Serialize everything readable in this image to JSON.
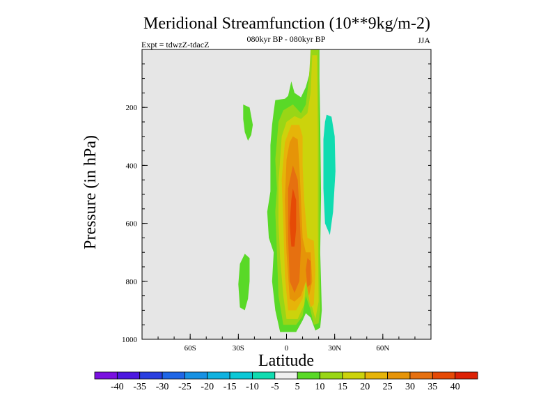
{
  "chart_data": {
    "type": "contour",
    "title": "Meridional Streamfunction (10**9kg/m-2)",
    "left_label": "Expt = tdwzZ-tdacZ",
    "center_label": "080kyr BP - 080kyr BP",
    "right_label": "JJA",
    "xlabel": "Latitude",
    "ylabel": "Pressure (in hPa)",
    "xlim": [
      -90,
      90
    ],
    "ylim": [
      1000,
      0
    ],
    "xticks": [
      {
        "value": -60,
        "label": "60S"
      },
      {
        "value": -30,
        "label": "30S"
      },
      {
        "value": 0,
        "label": "0"
      },
      {
        "value": 30,
        "label": "30N"
      },
      {
        "value": 60,
        "label": "60N"
      }
    ],
    "yticks": [
      {
        "value": 200,
        "label": "200"
      },
      {
        "value": 400,
        "label": "400"
      },
      {
        "value": 600,
        "label": "600"
      },
      {
        "value": 800,
        "label": "800"
      },
      {
        "value": 1000,
        "label": "1000"
      }
    ],
    "background": "#e6e6e6",
    "colorbar": {
      "labels": [
        "-40",
        "-35",
        "-30",
        "-25",
        "-20",
        "-15",
        "-10",
        "-5",
        "5",
        "10",
        "15",
        "20",
        "25",
        "30",
        "35",
        "40"
      ],
      "colors": [
        "#7a10e0",
        "#4d18e0",
        "#2a3fe0",
        "#1f66e6",
        "#1791e3",
        "#10b2e0",
        "#0cc8d6",
        "#10dcb0",
        "#f0f0f0",
        "#59d927",
        "#99d616",
        "#ccd30c",
        "#e6b409",
        "#e69408",
        "#e67010",
        "#e64a06",
        "#dd2206"
      ]
    },
    "contours": [
      {
        "level": 5,
        "color": "#59d927",
        "polygon": [
          [
            15,
            0
          ],
          [
            20.5,
            0
          ],
          [
            20.5,
            100
          ],
          [
            21,
            250
          ],
          [
            21.5,
            500
          ],
          [
            21,
            700
          ],
          [
            22,
            900
          ],
          [
            21,
            960
          ],
          [
            18,
            970
          ],
          [
            15,
            925
          ],
          [
            12,
            910
          ],
          [
            10,
            935
          ],
          [
            6,
            975
          ],
          [
            -4,
            975
          ],
          [
            -7,
            900
          ],
          [
            -9,
            800
          ],
          [
            -8,
            700
          ],
          [
            -11,
            650
          ],
          [
            -12,
            560
          ],
          [
            -10,
            490
          ],
          [
            -10,
            330
          ],
          [
            -9,
            260
          ],
          [
            -8,
            215
          ],
          [
            -7,
            175
          ],
          [
            -1,
            170
          ],
          [
            1,
            160
          ],
          [
            3,
            110
          ],
          [
            5,
            150
          ],
          [
            9,
            165
          ],
          [
            12,
            130
          ],
          [
            14,
            90
          ],
          [
            15,
            40
          ]
        ]
      },
      {
        "level": 5,
        "color": "#59d927",
        "polygon": [
          [
            -26,
            705
          ],
          [
            -23,
            720
          ],
          [
            -23,
            800
          ],
          [
            -24,
            860
          ],
          [
            -26,
            900
          ],
          [
            -29,
            890
          ],
          [
            -30,
            810
          ],
          [
            -29,
            740
          ]
        ]
      },
      {
        "level": 5,
        "color": "#59d927",
        "polygon": [
          [
            -27,
            190
          ],
          [
            -23,
            200
          ],
          [
            -21,
            260
          ],
          [
            -22,
            295
          ],
          [
            -24,
            315
          ],
          [
            -26,
            285
          ],
          [
            -27,
            240
          ]
        ]
      },
      {
        "level": 10,
        "color": "#99d616",
        "polygon": [
          [
            15,
            0
          ],
          [
            20,
            0
          ],
          [
            20,
            200
          ],
          [
            20.5,
            400
          ],
          [
            20.5,
            700
          ],
          [
            21,
            900
          ],
          [
            20,
            945
          ],
          [
            17,
            950
          ],
          [
            15,
            900
          ],
          [
            12,
            850
          ],
          [
            10,
            920
          ],
          [
            6,
            950
          ],
          [
            -2,
            950
          ],
          [
            -5,
            850
          ],
          [
            -6,
            700
          ],
          [
            -7,
            560
          ],
          [
            -6,
            480
          ],
          [
            -7,
            380
          ],
          [
            -5,
            250
          ],
          [
            -2,
            210
          ],
          [
            4,
            190
          ],
          [
            9,
            220
          ],
          [
            12,
            190
          ],
          [
            14,
            100
          ]
        ]
      },
      {
        "level": 15,
        "color": "#ccd30c",
        "polygon": [
          [
            16,
            20
          ],
          [
            19,
            20
          ],
          [
            19.5,
            300
          ],
          [
            19.5,
            600
          ],
          [
            20,
            870
          ],
          [
            18,
            930
          ],
          [
            15,
            870
          ],
          [
            12,
            800
          ],
          [
            11,
            880
          ],
          [
            7,
            930
          ],
          [
            0,
            930
          ],
          [
            -2,
            850
          ],
          [
            -4,
            720
          ],
          [
            -5,
            600
          ],
          [
            -5,
            460
          ],
          [
            -3,
            300
          ],
          [
            0,
            250
          ],
          [
            5,
            230
          ],
          [
            9,
            240
          ],
          [
            13,
            220
          ],
          [
            15,
            150
          ]
        ]
      },
      {
        "level": 20,
        "color": "#e6b409",
        "polygon": [
          [
            3,
            260
          ],
          [
            8,
            260
          ],
          [
            10,
            300
          ],
          [
            10,
            400
          ],
          [
            11,
            520
          ],
          [
            13,
            650
          ],
          [
            17,
            660
          ],
          [
            18,
            760
          ],
          [
            17,
            880
          ],
          [
            15,
            890
          ],
          [
            12,
            800
          ],
          [
            10,
            860
          ],
          [
            6,
            900
          ],
          [
            1,
            900
          ],
          [
            -1,
            780
          ],
          [
            -2,
            600
          ],
          [
            -3,
            450
          ],
          [
            -1,
            320
          ]
        ]
      },
      {
        "level": 25,
        "color": "#e69408",
        "polygon": [
          [
            4,
            300
          ],
          [
            7,
            310
          ],
          [
            8,
            400
          ],
          [
            9,
            520
          ],
          [
            10,
            650
          ],
          [
            12,
            700
          ],
          [
            15,
            700
          ],
          [
            16,
            800
          ],
          [
            14,
            850
          ],
          [
            12,
            800
          ],
          [
            9,
            850
          ],
          [
            5,
            870
          ],
          [
            2,
            860
          ],
          [
            0,
            700
          ],
          [
            -1,
            520
          ],
          [
            0,
            380
          ],
          [
            2,
            320
          ]
        ]
      },
      {
        "level": 30,
        "color": "#e67010",
        "polygon": [
          [
            4,
            400
          ],
          [
            7,
            450
          ],
          [
            8,
            550
          ],
          [
            9,
            680
          ],
          [
            8,
            800
          ],
          [
            5,
            840
          ],
          [
            2,
            800
          ],
          [
            1,
            650
          ],
          [
            1,
            480
          ]
        ]
      },
      {
        "level": 30,
        "color": "#e67010",
        "polygon": [
          [
            13,
            720
          ],
          [
            15,
            730
          ],
          [
            15,
            810
          ],
          [
            13,
            820
          ],
          [
            12,
            760
          ]
        ]
      },
      {
        "level": 35,
        "color": "#e64a06",
        "polygon": [
          [
            4,
            480
          ],
          [
            6,
            520
          ],
          [
            6,
            620
          ],
          [
            5,
            680
          ],
          [
            3,
            680
          ],
          [
            2,
            600
          ],
          [
            3,
            520
          ]
        ]
      },
      {
        "level": -10,
        "color": "#10dcb0",
        "polygon": [
          [
            25,
            225
          ],
          [
            28,
            232
          ],
          [
            30,
            300
          ],
          [
            30.5,
            420
          ],
          [
            29,
            560
          ],
          [
            27,
            640
          ],
          [
            24,
            600
          ],
          [
            23,
            480
          ],
          [
            23,
            310
          ],
          [
            24,
            250
          ]
        ]
      }
    ]
  }
}
